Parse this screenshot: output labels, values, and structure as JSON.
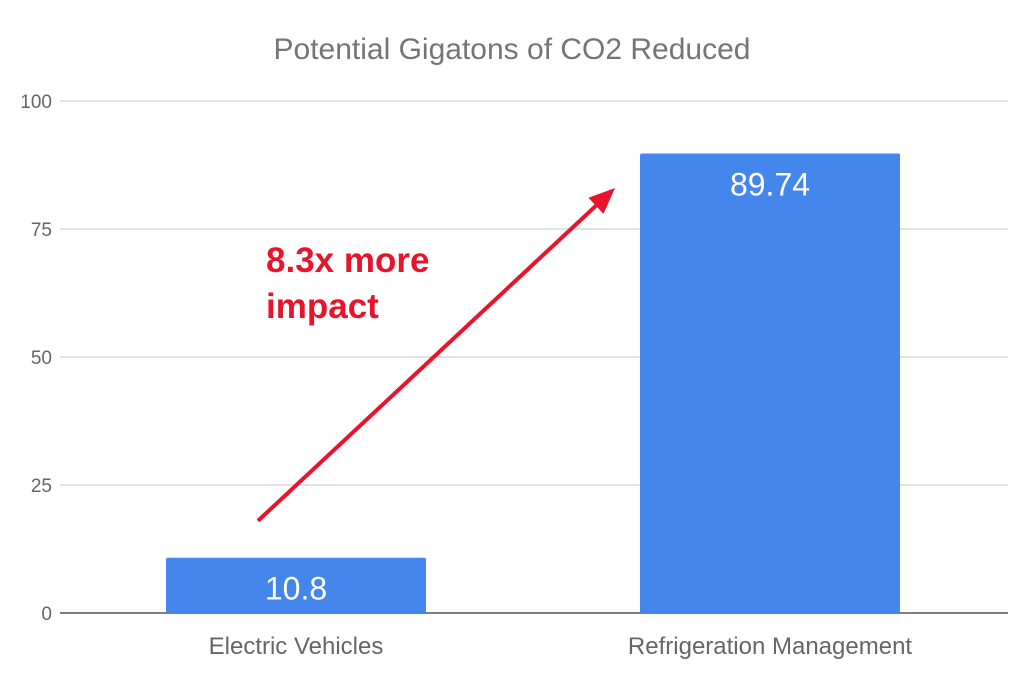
{
  "chart_data": {
    "type": "bar",
    "title": "Potential Gigatons of CO2 Reduced",
    "categories": [
      "Electric Vehicles",
      "Refrigeration Management"
    ],
    "values": [
      10.8,
      89.74
    ],
    "data_labels": [
      "10.8",
      "89.74"
    ],
    "xlabel": "",
    "ylabel": "",
    "ylim": [
      0,
      100
    ],
    "yticks": [
      0,
      25,
      50,
      75,
      100
    ],
    "grid": true,
    "legend": "none",
    "annotation": {
      "lines": [
        "8.3x more",
        "impact"
      ],
      "arrow_from": {
        "category": "Electric Vehicles",
        "value": 18
      },
      "arrow_to": {
        "category": "Refrigeration Management",
        "value": 83
      }
    },
    "colors": {
      "bar": "#4486ec",
      "annotation": "#e8142b",
      "grid": "#d9d9d9",
      "text": "#666666",
      "title": "#757575"
    }
  }
}
